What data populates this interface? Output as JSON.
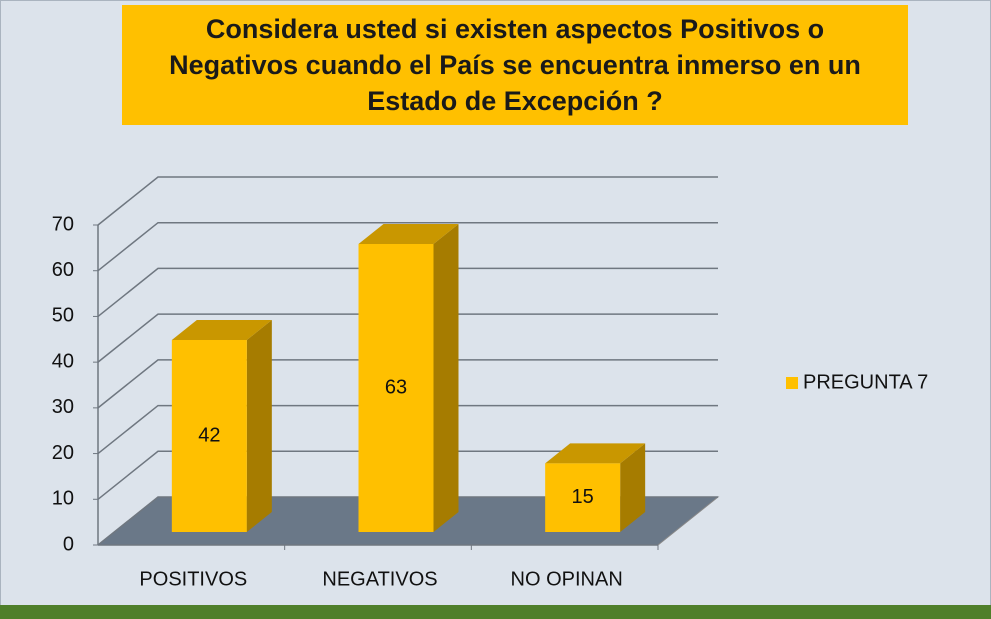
{
  "chart_data": {
    "type": "bar",
    "title": "Considera usted si existen aspectos Positivos o Negativos cuando el País se encuentra inmerso en un Estado de Excepción ?",
    "categories": [
      "POSITIVOS",
      "NEGATIVOS",
      "NO OPINAN"
    ],
    "series": [
      {
        "name": "PREGUNTA 7",
        "color": "#ffc000",
        "values": [
          42,
          63,
          15
        ]
      }
    ],
    "ylim": [
      0,
      70
    ],
    "yticks": [
      0,
      10,
      20,
      30,
      40,
      50,
      60,
      70
    ],
    "grid": true,
    "legend": "right"
  }
}
